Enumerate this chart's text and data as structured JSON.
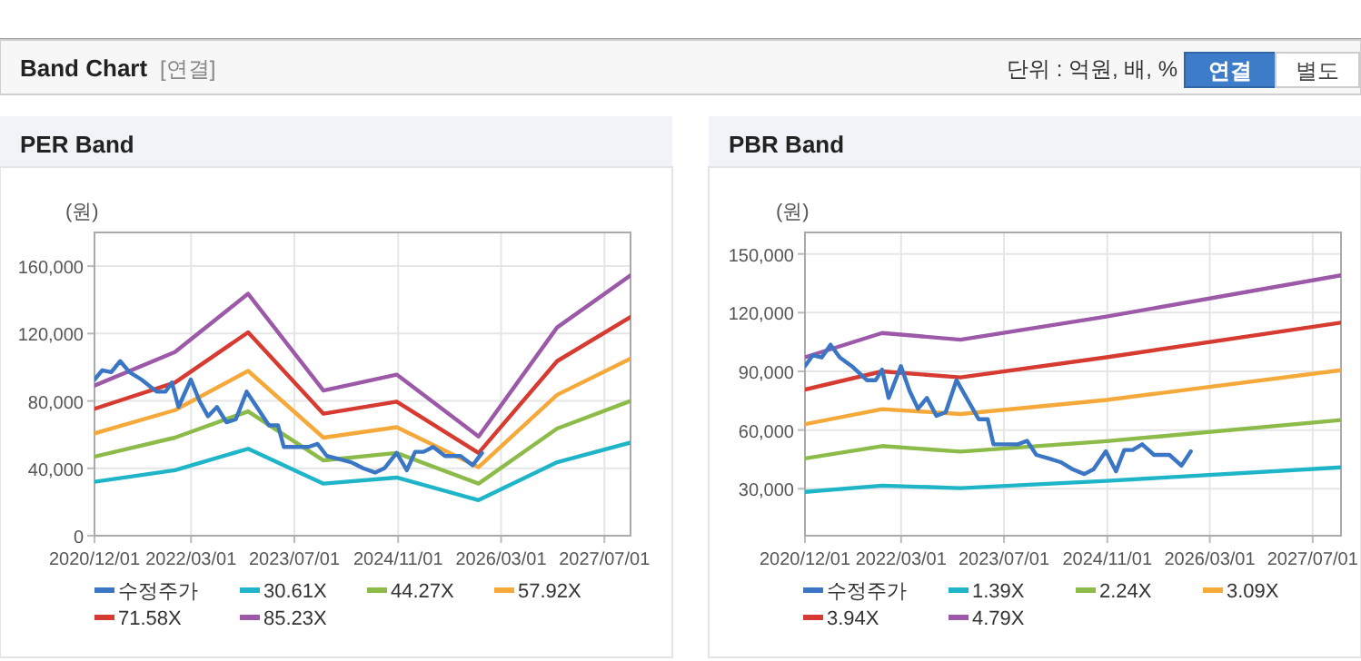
{
  "chart_data": [
    {
      "type": "other",
      "title": "Band Chart",
      "subtitle": "[연결]",
      "annotations": [
        "단위 : 억원, 배, %",
        "연결",
        "별도"
      ]
    },
    {
      "type": "line",
      "title": "PER Band",
      "ylabel": "(원)",
      "xlim": [
        "2020-12-01",
        "2027-11-01"
      ],
      "xticks": [
        {
          "value": "2020-12-01",
          "label": "2020/12/01"
        },
        {
          "value": "2022-03-01",
          "label": "2022/03/01"
        },
        {
          "value": "2023-07-01",
          "label": "2023/07/01"
        },
        {
          "value": "2024-11-01",
          "label": "2024/11/01"
        },
        {
          "value": "2026-03-01",
          "label": "2026/03/01"
        },
        {
          "value": "2027-07-01",
          "label": "2027/07/01"
        }
      ],
      "ylim": [
        0,
        180000
      ],
      "yticks": [
        {
          "value": 0,
          "label": "0"
        },
        {
          "value": 40000,
          "label": "40,000"
        },
        {
          "value": 80000,
          "label": "80,000"
        },
        {
          "value": 120000,
          "label": "120,000"
        },
        {
          "value": 160000,
          "label": "160,000"
        }
      ],
      "grid": true,
      "legend": "bottom",
      "marker": "none",
      "line_style": "solid",
      "series": [
        {
          "name": "수정주가",
          "color": "#3a76c4",
          "x": [
            "2020-12-01",
            "2021-01-07",
            "2021-02-18",
            "2021-04-01",
            "2021-05-15",
            "2021-07-10",
            "2021-09-20",
            "2021-11-01",
            "2021-12-01",
            "2022-01-01",
            "2022-02-28",
            "2022-04-10",
            "2022-05-20",
            "2022-07-01",
            "2022-08-15",
            "2022-09-28",
            "2022-11-18",
            "2023-01-05",
            "2023-03-03",
            "2023-04-15",
            "2023-05-12",
            "2023-07-10",
            "2023-09-05",
            "2023-10-18",
            "2023-12-01",
            "2024-01-28",
            "2024-03-25",
            "2024-05-20",
            "2024-07-15",
            "2024-08-28",
            "2024-10-25",
            "2024-12-12",
            "2025-01-20",
            "2025-03-01",
            "2025-04-15",
            "2025-06-10",
            "2025-08-22",
            "2025-10-18",
            "2025-12-01"
          ],
          "values": [
            92700,
            98200,
            97100,
            103600,
            97100,
            92700,
            85500,
            85500,
            90900,
            76400,
            92700,
            80000,
            70900,
            76400,
            67300,
            69100,
            85500,
            76400,
            65500,
            65500,
            52700,
            52700,
            52700,
            54500,
            47300,
            45500,
            43600,
            40000,
            37500,
            40000,
            49100,
            38900,
            49800,
            49800,
            52700,
            47300,
            47300,
            41800,
            49100
          ]
        },
        {
          "name": "30.61X",
          "color": "#1fb5c8",
          "x": [
            "2020-12-01",
            "2021-12-15",
            "2022-11-25",
            "2023-11-15",
            "2024-10-25",
            "2025-11-15",
            "2026-11-20",
            "2027-11-01"
          ],
          "values": [
            32000,
            38900,
            51600,
            30900,
            34500,
            21100,
            43600,
            55300
          ]
        },
        {
          "name": "44.27X",
          "color": "#8cbb4a",
          "x": [
            "2020-12-01",
            "2021-12-15",
            "2022-11-25",
            "2023-11-15",
            "2024-10-25",
            "2025-11-15",
            "2026-11-20",
            "2027-11-01"
          ],
          "values": [
            46900,
            58200,
            73800,
            44700,
            49100,
            30900,
            63600,
            80000
          ]
        },
        {
          "name": "57.92X",
          "color": "#f5a93a",
          "x": [
            "2020-12-01",
            "2021-12-15",
            "2022-11-25",
            "2023-11-15",
            "2024-10-25",
            "2025-11-15",
            "2026-11-20",
            "2027-11-01"
          ],
          "values": [
            60700,
            74500,
            97800,
            58200,
            64400,
            40700,
            83600,
            105100
          ]
        },
        {
          "name": "71.58X",
          "color": "#d63a30",
          "x": [
            "2020-12-01",
            "2021-12-15",
            "2022-11-25",
            "2023-11-15",
            "2024-10-25",
            "2025-11-15",
            "2026-11-20",
            "2027-11-01"
          ],
          "values": [
            75300,
            90900,
            120700,
            72400,
            79600,
            49100,
            103600,
            129800
          ]
        },
        {
          "name": "85.23X",
          "color": "#9b59a8",
          "x": [
            "2020-12-01",
            "2021-12-15",
            "2022-11-25",
            "2023-11-15",
            "2024-10-25",
            "2025-11-15",
            "2026-11-20",
            "2027-11-01"
          ],
          "values": [
            89100,
            109000,
            143600,
            86200,
            95600,
            58900,
            123600,
            154500
          ]
        }
      ]
    },
    {
      "type": "line",
      "title": "PBR Band",
      "ylabel": "(원)",
      "xlim": [
        "2020-12-01",
        "2027-11-12"
      ],
      "xticks": [
        {
          "value": "2020-12-01",
          "label": "2020/12/01"
        },
        {
          "value": "2022-03-01",
          "label": "2022/03/01"
        },
        {
          "value": "2023-07-01",
          "label": "2023/07/01"
        },
        {
          "value": "2024-11-01",
          "label": "2024/11/01"
        },
        {
          "value": "2026-03-01",
          "label": "2026/03/01"
        },
        {
          "value": "2027-07-01",
          "label": "2027/07/01"
        }
      ],
      "ylim": [
        6000,
        161000
      ],
      "yticks": [
        {
          "value": 30000,
          "label": "30,000"
        },
        {
          "value": 60000,
          "label": "60,000"
        },
        {
          "value": 90000,
          "label": "90,000"
        },
        {
          "value": 120000,
          "label": "120,000"
        },
        {
          "value": 150000,
          "label": "150,000"
        }
      ],
      "grid": true,
      "legend": "bottom",
      "marker": "none",
      "line_style": "solid",
      "series": [
        {
          "name": "수정주가",
          "color": "#3a76c4",
          "x": [
            "2020-12-01",
            "2021-01-07",
            "2021-02-18",
            "2021-04-01",
            "2021-05-15",
            "2021-07-10",
            "2021-09-20",
            "2021-11-01",
            "2021-12-01",
            "2022-01-01",
            "2022-02-28",
            "2022-04-10",
            "2022-05-20",
            "2022-07-01",
            "2022-08-15",
            "2022-09-28",
            "2022-11-18",
            "2023-01-05",
            "2023-03-03",
            "2023-04-15",
            "2023-05-12",
            "2023-07-10",
            "2023-09-05",
            "2023-10-18",
            "2023-12-01",
            "2024-01-28",
            "2024-03-25",
            "2024-05-20",
            "2024-07-15",
            "2024-08-28",
            "2024-10-25",
            "2024-12-12",
            "2025-01-20",
            "2025-03-01",
            "2025-04-15",
            "2025-06-10",
            "2025-08-22",
            "2025-10-18",
            "2025-12-01"
          ],
          "values": [
            92700,
            98200,
            97100,
            103600,
            97100,
            92700,
            85500,
            85500,
            90900,
            76400,
            92700,
            80000,
            70900,
            76400,
            67300,
            69100,
            85500,
            76400,
            65500,
            65500,
            52700,
            52700,
            52700,
            54500,
            47300,
            45500,
            43600,
            40000,
            37500,
            40000,
            49100,
            38900,
            49800,
            49800,
            52700,
            47300,
            47300,
            41800,
            49100
          ]
        },
        {
          "name": "1.39X",
          "color": "#1fb5c8",
          "x": [
            "2020-12-01",
            "2021-12-01",
            "2022-12-07",
            "2024-10-28",
            "2027-11-12"
          ],
          "values": [
            28400,
            31600,
            30300,
            34000,
            40900
          ]
        },
        {
          "name": "2.24X",
          "color": "#8cbb4a",
          "x": [
            "2020-12-01",
            "2021-12-01",
            "2022-12-07",
            "2024-10-28",
            "2027-11-12"
          ],
          "values": [
            45500,
            51800,
            49000,
            54300,
            65100
          ]
        },
        {
          "name": "3.09X",
          "color": "#f5a93a",
          "x": [
            "2020-12-01",
            "2021-12-01",
            "2022-12-07",
            "2024-10-28",
            "2027-11-12"
          ],
          "values": [
            63000,
            70700,
            68200,
            75400,
            90600
          ]
        },
        {
          "name": "3.94X",
          "color": "#d63a30",
          "x": [
            "2020-12-01",
            "2021-12-01",
            "2022-12-07",
            "2024-10-28",
            "2027-11-12"
          ],
          "values": [
            80700,
            90000,
            86900,
            97200,
            114900
          ]
        },
        {
          "name": "4.79X",
          "color": "#9b59a8",
          "x": [
            "2020-12-01",
            "2021-12-01",
            "2022-12-07",
            "2024-10-28",
            "2027-11-12"
          ],
          "values": [
            97200,
            109600,
            106200,
            118000,
            139100
          ]
        }
      ]
    }
  ]
}
